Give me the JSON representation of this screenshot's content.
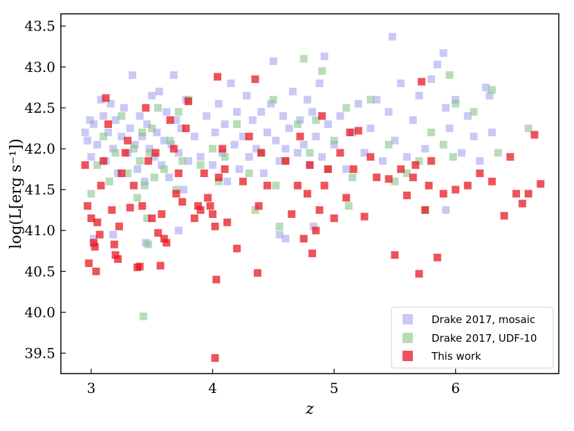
{
  "chart_data": {
    "type": "scatter",
    "title": "",
    "xlabel": "z",
    "ylabel": "log(L[erg s⁻¹])",
    "xlim": [
      2.75,
      6.85
    ],
    "ylim": [
      39.25,
      43.65
    ],
    "x_ticks": [
      3,
      4,
      5,
      6
    ],
    "y_ticks": [
      39.5,
      40.0,
      40.5,
      41.0,
      41.5,
      42.0,
      42.5,
      43.0,
      43.5
    ],
    "x_tick_labels": [
      "3",
      "4",
      "5",
      "6"
    ],
    "y_tick_labels": [
      "39.5",
      "40.0",
      "40.5",
      "41.0",
      "41.5",
      "42.0",
      "42.5",
      "43.0",
      "43.5"
    ],
    "grid": false,
    "legend_position": "lower-right",
    "series": [
      {
        "name": "Drake 2017, mosaic",
        "color": "#9d9df0",
        "opacity": 0.55,
        "marker": "square",
        "points": [
          [
            2.95,
            42.2
          ],
          [
            2.97,
            42.1
          ],
          [
            2.99,
            42.35
          ],
          [
            3.0,
            41.9
          ],
          [
            3.02,
            42.3
          ],
          [
            3.05,
            42.05
          ],
          [
            3.08,
            42.6
          ],
          [
            3.1,
            42.4
          ],
          [
            3.12,
            41.85
          ],
          [
            3.14,
            42.2
          ],
          [
            3.16,
            42.55
          ],
          [
            3.18,
            42.0
          ],
          [
            3.2,
            42.35
          ],
          [
            3.22,
            41.7
          ],
          [
            3.25,
            42.15
          ],
          [
            3.27,
            42.5
          ],
          [
            3.3,
            41.95
          ],
          [
            3.32,
            42.25
          ],
          [
            3.34,
            42.9
          ],
          [
            3.36,
            42.05
          ],
          [
            3.38,
            41.75
          ],
          [
            3.4,
            42.4
          ],
          [
            3.42,
            42.15
          ],
          [
            3.44,
            41.6
          ],
          [
            3.46,
            42.3
          ],
          [
            3.48,
            42.0
          ],
          [
            3.5,
            42.65
          ],
          [
            3.52,
            41.9
          ],
          [
            3.54,
            42.2
          ],
          [
            3.56,
            42.7
          ],
          [
            3.58,
            41.8
          ],
          [
            3.6,
            42.1
          ],
          [
            3.62,
            42.45
          ],
          [
            3.64,
            41.65
          ],
          [
            3.66,
            42.05
          ],
          [
            3.68,
            42.9
          ],
          [
            3.7,
            42.35
          ],
          [
            3.72,
            41.95
          ],
          [
            3.74,
            42.25
          ],
          [
            3.76,
            41.5
          ],
          [
            3.78,
            42.6
          ],
          [
            3.8,
            41.85
          ],
          [
            3.85,
            42.15
          ],
          [
            3.9,
            41.9
          ],
          [
            3.95,
            42.4
          ],
          [
            4.0,
            41.8
          ],
          [
            4.02,
            42.2
          ],
          [
            4.05,
            42.55
          ],
          [
            4.08,
            41.95
          ],
          [
            4.1,
            42.3
          ],
          [
            4.12,
            41.6
          ],
          [
            4.15,
            42.8
          ],
          [
            4.18,
            42.05
          ],
          [
            4.2,
            42.45
          ],
          [
            4.22,
            41.75
          ],
          [
            4.25,
            42.15
          ],
          [
            4.28,
            42.65
          ],
          [
            4.3,
            41.9
          ],
          [
            4.33,
            42.35
          ],
          [
            4.36,
            42.0
          ],
          [
            4.4,
            42.45
          ],
          [
            4.42,
            41.7
          ],
          [
            4.45,
            42.2
          ],
          [
            4.48,
            42.55
          ],
          [
            4.5,
            43.07
          ],
          [
            4.52,
            42.1
          ],
          [
            4.55,
            41.85
          ],
          [
            4.58,
            42.4
          ],
          [
            4.6,
            42.0
          ],
          [
            4.63,
            42.25
          ],
          [
            4.66,
            42.7
          ],
          [
            4.7,
            41.95
          ],
          [
            4.72,
            42.35
          ],
          [
            4.75,
            42.05
          ],
          [
            4.78,
            42.6
          ],
          [
            4.8,
            41.8
          ],
          [
            4.82,
            42.45
          ],
          [
            4.85,
            42.15
          ],
          [
            4.88,
            42.8
          ],
          [
            4.9,
            41.9
          ],
          [
            4.92,
            43.13
          ],
          [
            4.95,
            42.3
          ],
          [
            5.0,
            42.05
          ],
          [
            5.05,
            42.4
          ],
          [
            5.1,
            41.75
          ],
          [
            5.15,
            42.2
          ],
          [
            5.2,
            42.55
          ],
          [
            5.25,
            41.95
          ],
          [
            5.3,
            42.25
          ],
          [
            5.35,
            42.6
          ],
          [
            5.4,
            41.85
          ],
          [
            5.45,
            42.45
          ],
          [
            5.48,
            43.37
          ],
          [
            5.5,
            42.1
          ],
          [
            5.55,
            42.8
          ],
          [
            5.6,
            41.9
          ],
          [
            5.65,
            42.35
          ],
          [
            5.7,
            42.65
          ],
          [
            5.75,
            42.0
          ],
          [
            5.8,
            42.85
          ],
          [
            5.85,
            43.03
          ],
          [
            5.9,
            43.17
          ],
          [
            5.92,
            42.5
          ],
          [
            5.95,
            42.25
          ],
          [
            6.0,
            42.6
          ],
          [
            6.05,
            41.95
          ],
          [
            6.1,
            42.4
          ],
          [
            6.15,
            42.15
          ],
          [
            6.25,
            42.75
          ],
          [
            6.28,
            42.65
          ],
          [
            6.3,
            42.2
          ],
          [
            6.2,
            41.85
          ],
          [
            3.02,
            40.9
          ],
          [
            3.18,
            40.95
          ],
          [
            3.45,
            40.85
          ],
          [
            3.72,
            41.0
          ],
          [
            4.55,
            40.95
          ],
          [
            4.6,
            40.9
          ],
          [
            4.83,
            41.05
          ],
          [
            5.92,
            41.25
          ]
        ]
      },
      {
        "name": "Drake 2017, UDF-10",
        "color": "#88c488",
        "opacity": 0.6,
        "marker": "square",
        "points": [
          [
            3.0,
            41.45
          ],
          [
            3.05,
            41.8
          ],
          [
            3.1,
            42.15
          ],
          [
            3.15,
            41.6
          ],
          [
            3.2,
            41.95
          ],
          [
            3.25,
            42.4
          ],
          [
            3.3,
            41.7
          ],
          [
            3.35,
            42.0
          ],
          [
            3.38,
            41.4
          ],
          [
            3.4,
            41.85
          ],
          [
            3.42,
            42.2
          ],
          [
            3.44,
            41.55
          ],
          [
            3.46,
            41.15
          ],
          [
            3.48,
            41.95
          ],
          [
            3.5,
            42.25
          ],
          [
            3.52,
            41.65
          ],
          [
            3.55,
            42.5
          ],
          [
            3.6,
            41.75
          ],
          [
            3.65,
            42.1
          ],
          [
            3.7,
            41.5
          ],
          [
            3.72,
            42.45
          ],
          [
            3.75,
            41.85
          ],
          [
            3.8,
            42.6
          ],
          [
            3.9,
            41.8
          ],
          [
            4.0,
            42.0
          ],
          [
            4.05,
            41.6
          ],
          [
            4.1,
            41.9
          ],
          [
            4.2,
            42.3
          ],
          [
            4.3,
            41.7
          ],
          [
            4.35,
            41.25
          ],
          [
            4.4,
            41.95
          ],
          [
            4.5,
            42.6
          ],
          [
            4.52,
            41.55
          ],
          [
            4.55,
            41.05
          ],
          [
            4.6,
            41.85
          ],
          [
            4.7,
            42.3
          ],
          [
            4.75,
            43.1
          ],
          [
            4.8,
            41.95
          ],
          [
            4.85,
            42.35
          ],
          [
            4.9,
            42.95
          ],
          [
            4.95,
            41.75
          ],
          [
            5.0,
            42.1
          ],
          [
            5.1,
            42.5
          ],
          [
            5.12,
            41.3
          ],
          [
            5.15,
            41.65
          ],
          [
            5.3,
            42.6
          ],
          [
            5.45,
            42.05
          ],
          [
            5.5,
            41.6
          ],
          [
            5.6,
            41.7
          ],
          [
            5.7,
            41.85
          ],
          [
            5.75,
            41.25
          ],
          [
            5.8,
            42.2
          ],
          [
            5.9,
            42.05
          ],
          [
            5.95,
            42.9
          ],
          [
            5.98,
            41.9
          ],
          [
            6.0,
            42.55
          ],
          [
            6.15,
            42.45
          ],
          [
            6.3,
            42.72
          ],
          [
            6.35,
            41.95
          ],
          [
            6.6,
            42.25
          ],
          [
            3.43,
            39.95
          ],
          [
            3.47,
            40.83
          ]
        ]
      },
      {
        "name": "This work",
        "color": "#e8101a",
        "opacity": 0.72,
        "marker": "square",
        "points": [
          [
            2.95,
            41.8
          ],
          [
            2.97,
            41.3
          ],
          [
            2.98,
            40.6
          ],
          [
            3.0,
            41.15
          ],
          [
            3.02,
            40.85
          ],
          [
            3.03,
            40.8
          ],
          [
            3.04,
            40.5
          ],
          [
            3.05,
            41.1
          ],
          [
            3.07,
            40.95
          ],
          [
            3.08,
            41.55
          ],
          [
            3.1,
            41.85
          ],
          [
            3.12,
            42.62
          ],
          [
            3.14,
            42.3
          ],
          [
            3.17,
            41.25
          ],
          [
            3.19,
            40.83
          ],
          [
            3.2,
            40.7
          ],
          [
            3.22,
            40.65
          ],
          [
            3.23,
            41.05
          ],
          [
            3.25,
            41.7
          ],
          [
            3.28,
            41.95
          ],
          [
            3.3,
            42.1
          ],
          [
            3.32,
            41.28
          ],
          [
            3.35,
            41.55
          ],
          [
            3.38,
            40.55
          ],
          [
            3.4,
            40.56
          ],
          [
            3.42,
            41.3
          ],
          [
            3.45,
            42.5
          ],
          [
            3.47,
            41.85
          ],
          [
            3.5,
            41.15
          ],
          [
            3.53,
            41.95
          ],
          [
            3.55,
            40.97
          ],
          [
            3.57,
            40.57
          ],
          [
            3.58,
            41.2
          ],
          [
            3.6,
            40.9
          ],
          [
            3.62,
            40.85
          ],
          [
            3.65,
            42.35
          ],
          [
            3.68,
            42.0
          ],
          [
            3.7,
            41.45
          ],
          [
            3.72,
            41.7
          ],
          [
            3.75,
            41.35
          ],
          [
            3.78,
            42.25
          ],
          [
            3.8,
            42.58
          ],
          [
            3.85,
            41.15
          ],
          [
            3.88,
            41.3
          ],
          [
            3.9,
            41.25
          ],
          [
            3.93,
            41.7
          ],
          [
            3.96,
            41.4
          ],
          [
            3.98,
            41.3
          ],
          [
            4.0,
            41.2
          ],
          [
            4.02,
            41.05
          ],
          [
            4.03,
            40.4
          ],
          [
            4.04,
            42.88
          ],
          [
            4.05,
            41.65
          ],
          [
            4.08,
            42.0
          ],
          [
            4.1,
            41.75
          ],
          [
            4.12,
            41.1
          ],
          [
            4.2,
            40.78
          ],
          [
            4.25,
            41.6
          ],
          [
            4.3,
            42.15
          ],
          [
            4.35,
            42.85
          ],
          [
            4.38,
            41.3
          ],
          [
            4.4,
            41.95
          ],
          [
            4.45,
            41.55
          ],
          [
            4.02,
            39.44
          ],
          [
            4.37,
            40.48
          ],
          [
            4.6,
            41.85
          ],
          [
            4.65,
            41.2
          ],
          [
            4.7,
            41.55
          ],
          [
            4.72,
            42.15
          ],
          [
            4.75,
            40.9
          ],
          [
            4.78,
            41.45
          ],
          [
            4.8,
            41.8
          ],
          [
            4.82,
            40.72
          ],
          [
            4.85,
            41.0
          ],
          [
            4.88,
            41.25
          ],
          [
            4.9,
            42.4
          ],
          [
            4.92,
            41.55
          ],
          [
            4.95,
            41.75
          ],
          [
            5.0,
            41.15
          ],
          [
            5.05,
            41.95
          ],
          [
            5.1,
            41.4
          ],
          [
            5.13,
            42.2
          ],
          [
            5.16,
            41.75
          ],
          [
            5.2,
            42.22
          ],
          [
            5.25,
            41.17
          ],
          [
            5.3,
            41.9
          ],
          [
            5.35,
            41.65
          ],
          [
            5.45,
            41.63
          ],
          [
            5.5,
            40.7
          ],
          [
            5.55,
            41.75
          ],
          [
            5.6,
            41.43
          ],
          [
            5.65,
            41.65
          ],
          [
            5.67,
            41.8
          ],
          [
            5.7,
            40.47
          ],
          [
            5.72,
            42.82
          ],
          [
            5.75,
            41.25
          ],
          [
            5.78,
            41.55
          ],
          [
            5.8,
            41.85
          ],
          [
            5.85,
            40.67
          ],
          [
            5.9,
            41.45
          ],
          [
            6.0,
            41.5
          ],
          [
            6.1,
            41.55
          ],
          [
            6.2,
            41.7
          ],
          [
            6.3,
            41.6
          ],
          [
            6.4,
            41.18
          ],
          [
            6.45,
            41.9
          ],
          [
            6.5,
            41.45
          ],
          [
            6.55,
            41.33
          ],
          [
            6.6,
            41.45
          ],
          [
            6.65,
            42.17
          ],
          [
            6.7,
            41.57
          ]
        ]
      }
    ]
  }
}
